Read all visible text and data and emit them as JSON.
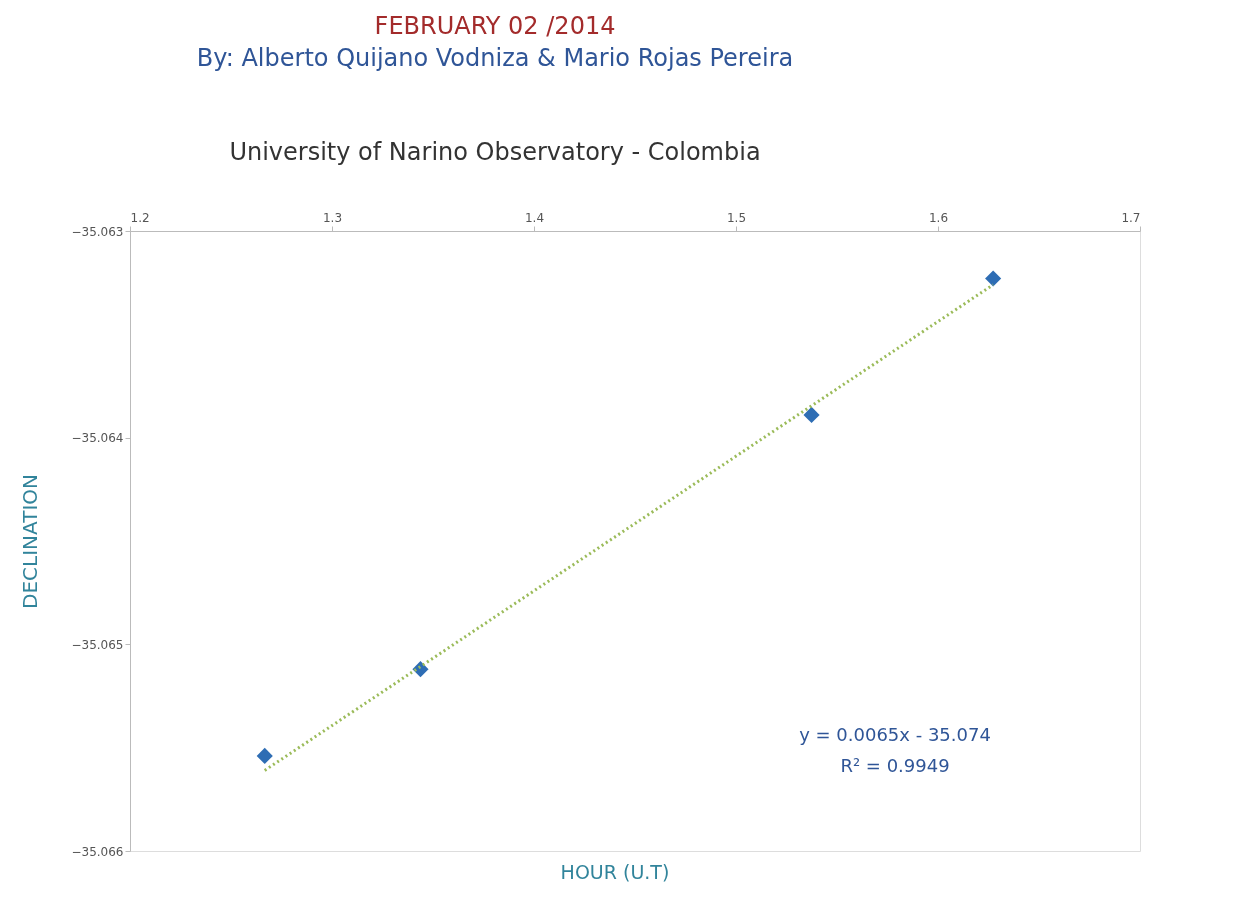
{
  "chart_data": {
    "type": "scatter",
    "title": "FEBRUARY 02 /2014",
    "subtitle": "By:  Alberto Quijano Vodniza  &  Mario Rojas Pereira",
    "xlabel": "HOUR (U.T)",
    "ylabel": "DECLINATION",
    "annotations": [
      "University of Narino Observatory - Colombia",
      "y = 0.0065x - 35.074",
      "R² = 0.9949"
    ],
    "series": [
      {
        "color": "#2e6db4",
        "marker": "diamond",
        "x": [
          1.2667,
          1.3438,
          1.5374,
          1.6273
        ],
        "values": [
          -35.06554,
          -35.06512,
          -35.06389,
          -35.06323
        ]
      },
      {
        "type": "line",
        "color": "#9bbb59",
        "line_style": "dotted",
        "marker": "none",
        "x": [
          1.2667,
          1.6273
        ],
        "values": [
          -35.06561,
          -35.06326
        ]
      }
    ],
    "xlim": [
      1.2,
      1.7
    ],
    "xticks": [
      1.2,
      1.3,
      1.4,
      1.5,
      1.6,
      1.7
    ],
    "ylim": [
      -35.066,
      -35.063
    ],
    "yticks": [
      -35.066,
      -35.065,
      -35.064,
      -35.063
    ],
    "grid": false
  }
}
